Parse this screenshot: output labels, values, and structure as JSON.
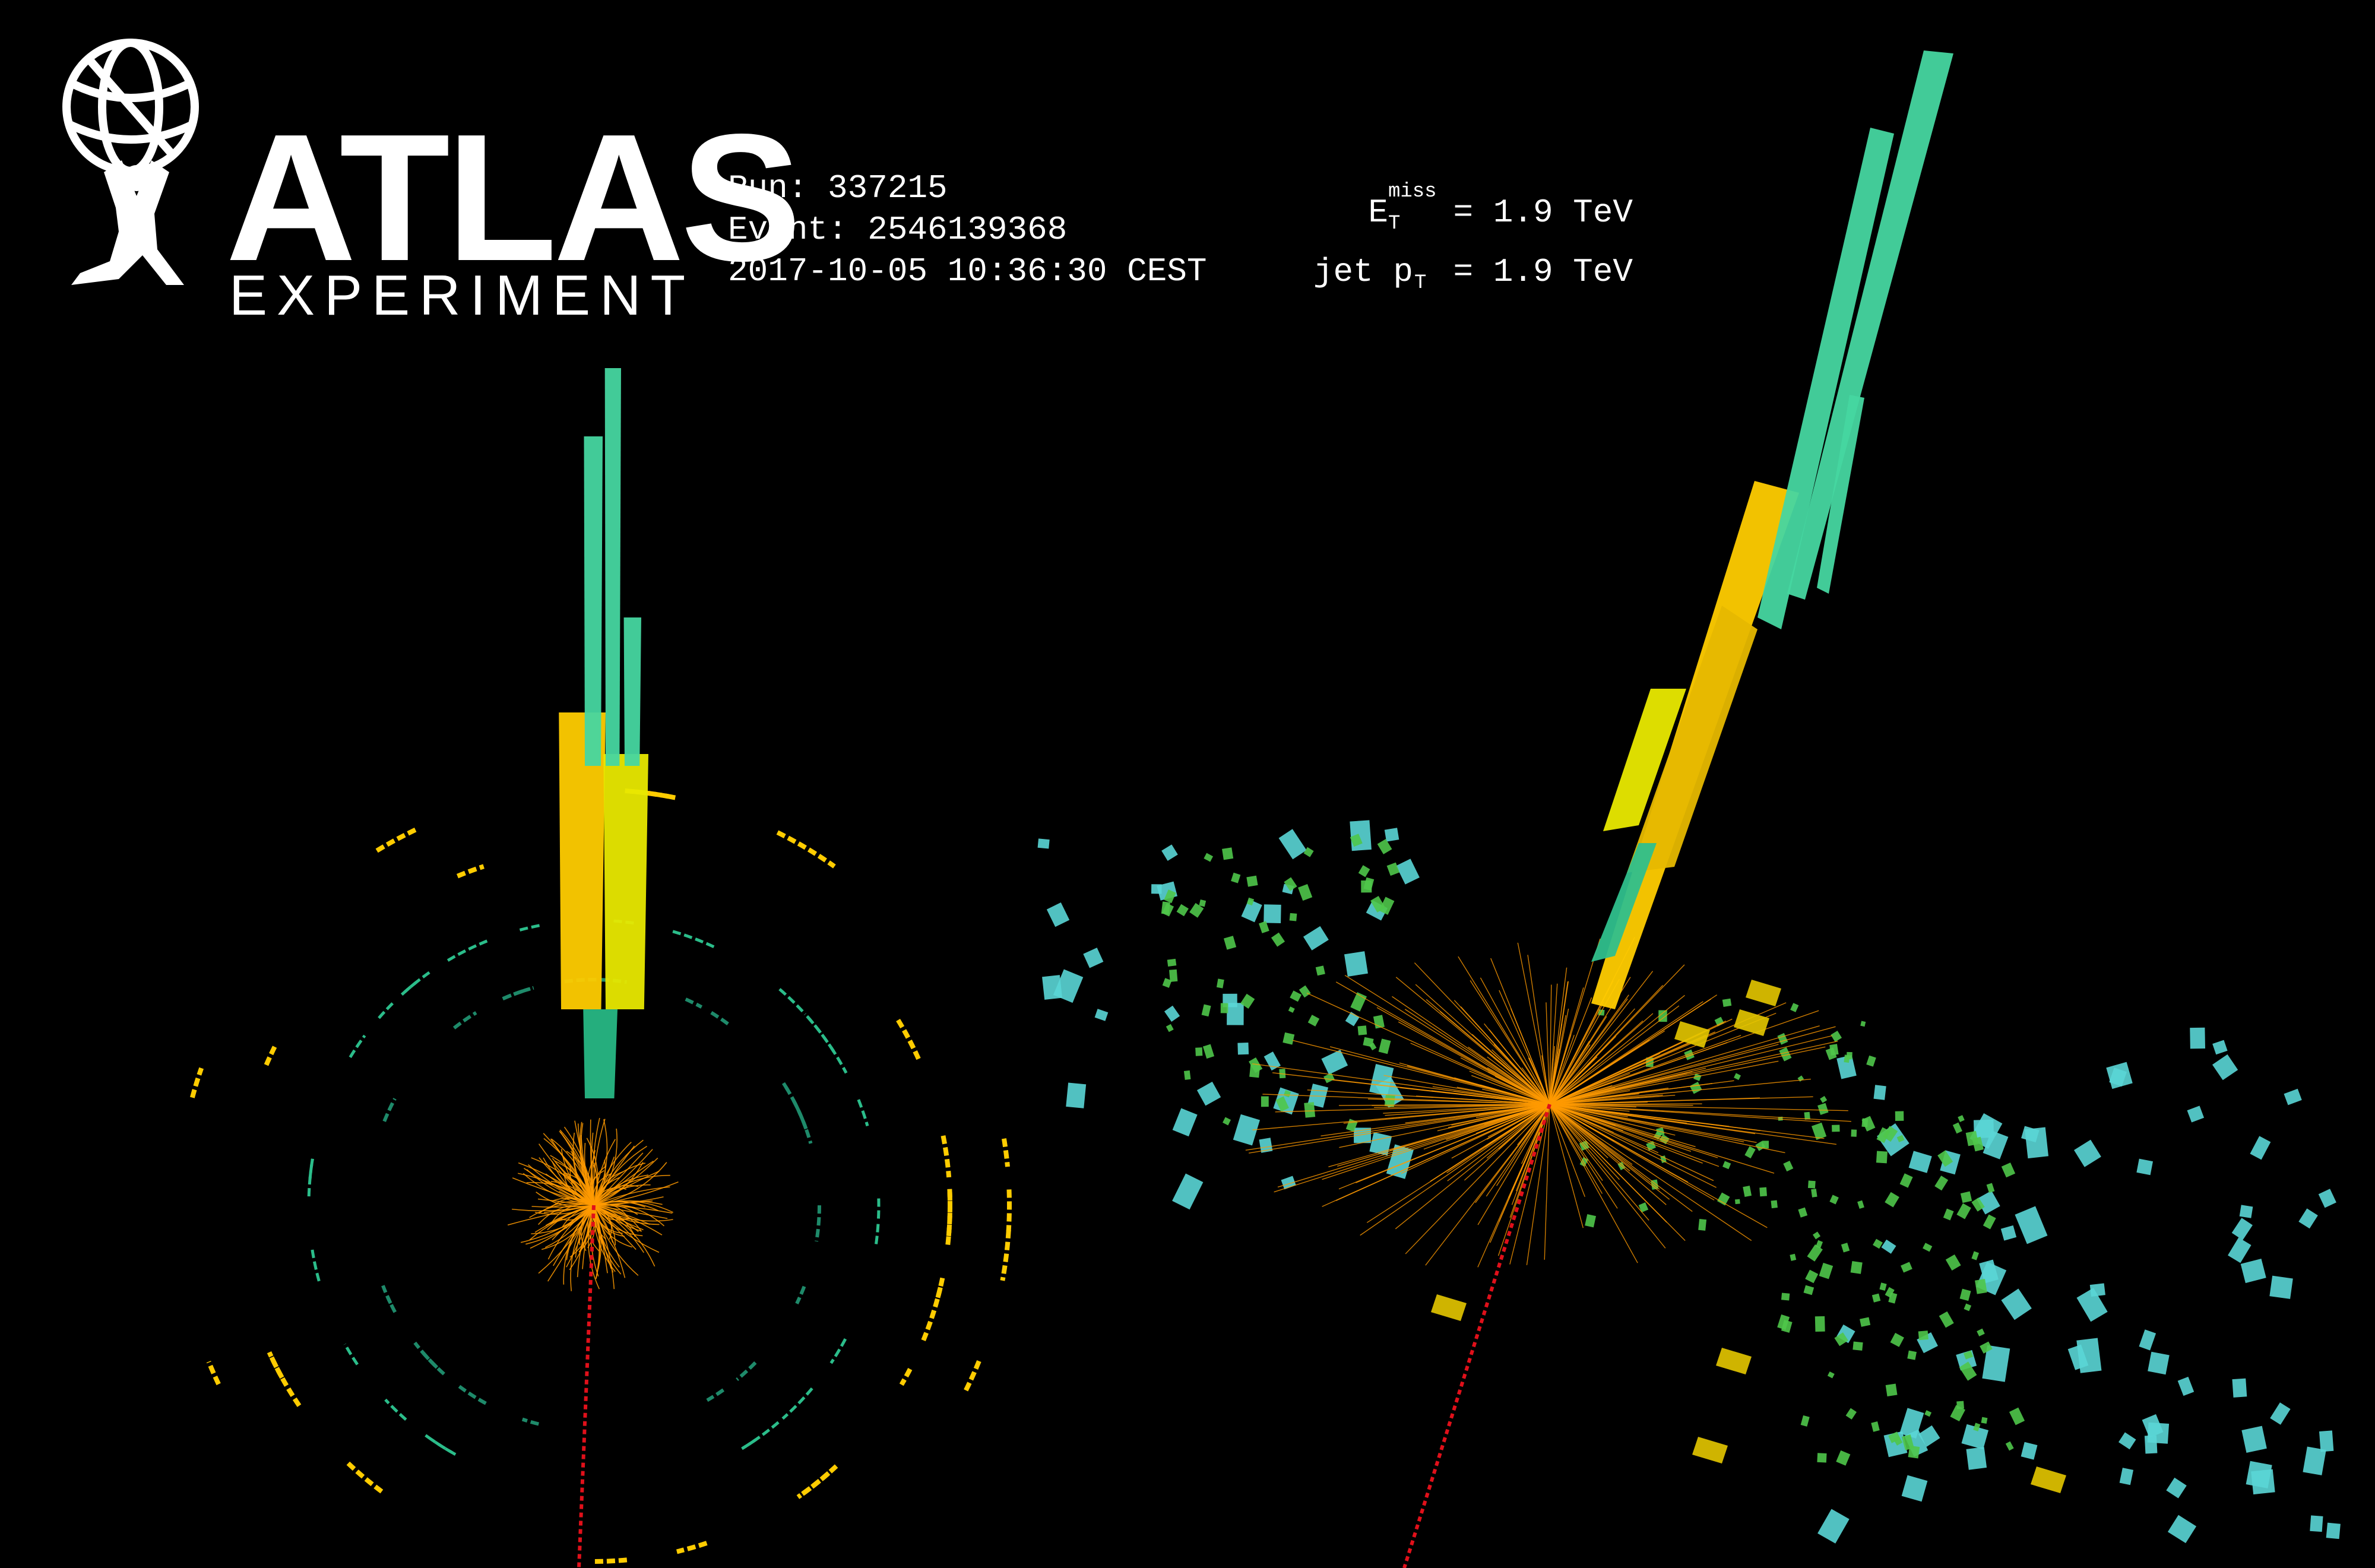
{
  "logo": {
    "title": "ATLAS",
    "subtitle": "EXPERIMENT"
  },
  "run_info": {
    "run": "Run: 337215",
    "event": "Event: 2546139368",
    "datetime": "2017-10-05 10:36:30 CEST"
  },
  "physics": {
    "met_symbol": "E",
    "met_sub": "T",
    "met_sup": "miss",
    "met_value": " = 1.9 TeV",
    "jet_prefix": "jet p",
    "jet_sub": "T",
    "jet_value": " = 1.9 TeV"
  },
  "colors": {
    "background": "#000000",
    "track": "#ff9a00",
    "met_line": "#e0101a",
    "calo_yellow": "#ffcc00",
    "calo_green": "#46d6a0",
    "muon_cyan": "#5ad6d6",
    "muon_green": "#4fc64a"
  }
}
